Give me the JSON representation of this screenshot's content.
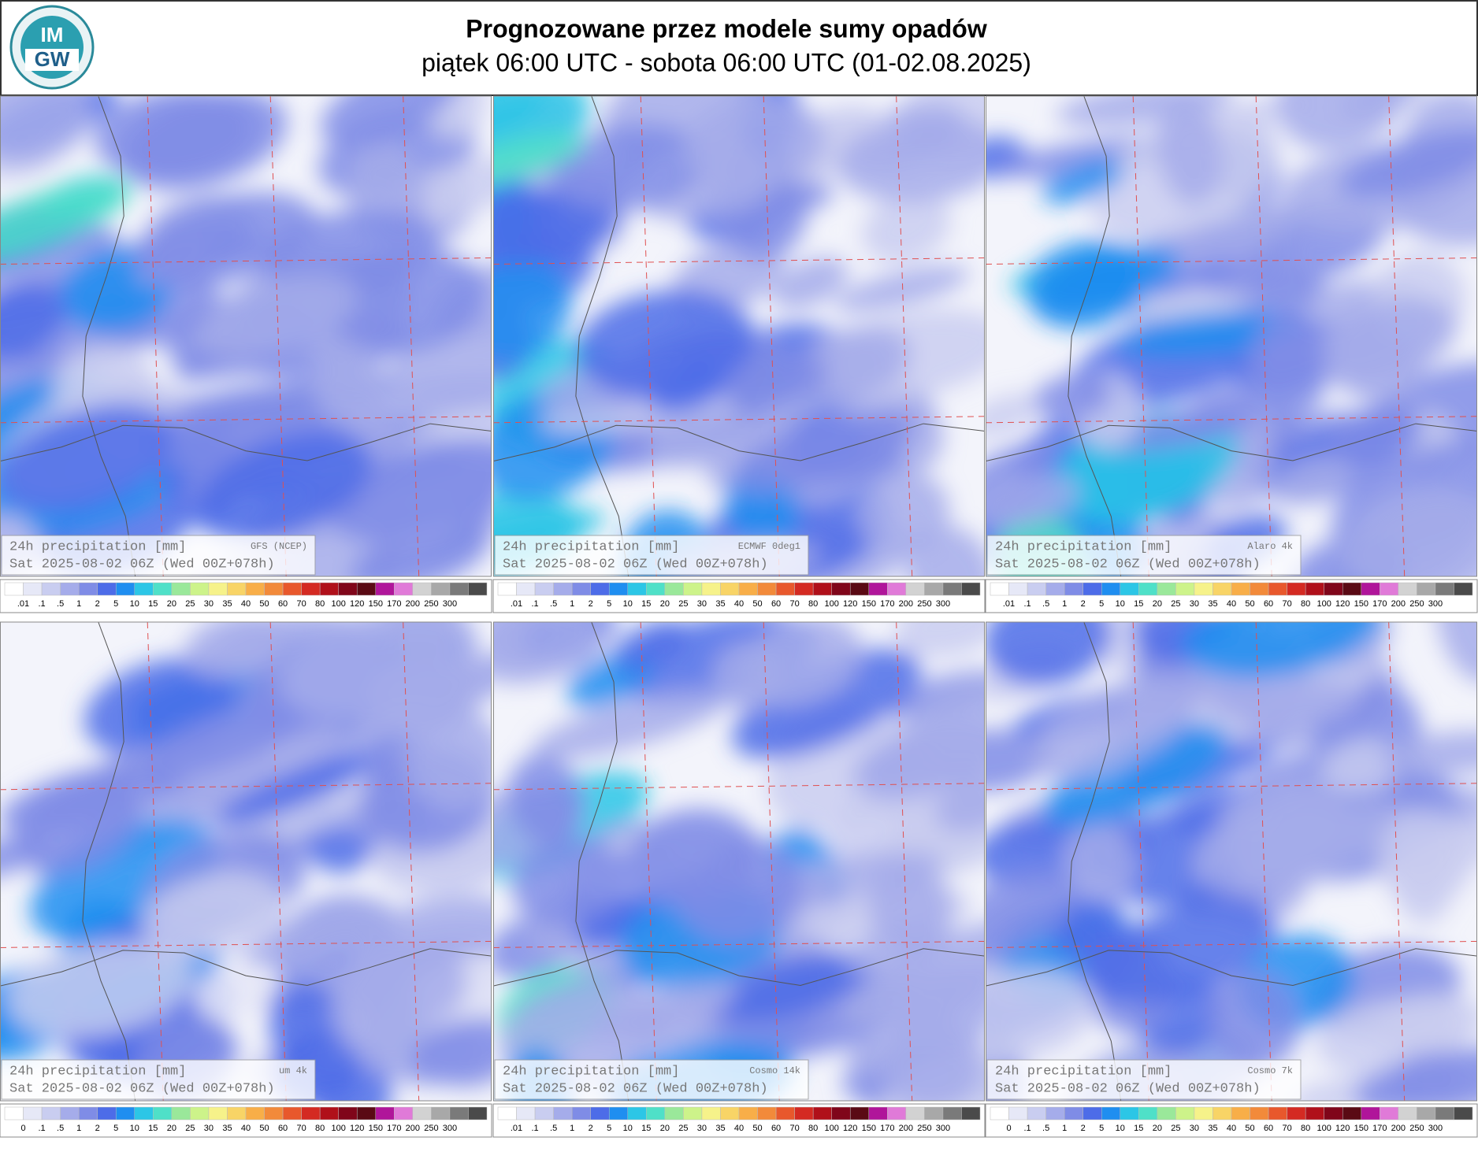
{
  "header": {
    "logo_lines": [
      "IM",
      "GW"
    ],
    "title": "Prognozowane przez modele sumy opadów",
    "subtitle": "piątek 06:00 UTC - sobota 06:00 UTC (01-02.08.2025)"
  },
  "scale_colors": [
    "#ffffff",
    "#e6e8f7",
    "#c9cdf0",
    "#a5acea",
    "#7f8ce6",
    "#4d6ce8",
    "#1f8ef0",
    "#2cc6e6",
    "#4fe0c8",
    "#9ae89a",
    "#cdf38a",
    "#f6f28a",
    "#f8d466",
    "#f8ae48",
    "#f28a3a",
    "#e8582c",
    "#d42a22",
    "#b0101a",
    "#80061a",
    "#5a0a14",
    "#b0159a",
    "#e07ad8",
    "#d2d2d2",
    "#a8a8a8",
    "#7a7a7a",
    "#4a4a4a"
  ],
  "panels": [
    {
      "caption": "24h precipitation  [mm]",
      "model": "GFS (NCEP)",
      "valid": "Sat 2025-08-02 06Z (Wed 00Z+078h)",
      "scale_labels": [
        ".01",
        ".1",
        ".5",
        "1",
        "2",
        "5",
        "10",
        "15",
        "20",
        "25",
        "30",
        "35",
        "40",
        "50",
        "60",
        "70",
        "80",
        "100",
        "120",
        "150",
        "170",
        "200",
        "250",
        "300"
      ]
    },
    {
      "caption": "24h precipitation  [mm]",
      "model": "ECMWF 0deg1",
      "valid": "Sat 2025-08-02 06Z (Wed 00Z+078h)",
      "scale_labels": [
        ".01",
        ".1",
        ".5",
        "1",
        "2",
        "5",
        "10",
        "15",
        "20",
        "25",
        "30",
        "35",
        "40",
        "50",
        "60",
        "70",
        "80",
        "100",
        "120",
        "150",
        "170",
        "200",
        "250",
        "300"
      ]
    },
    {
      "caption": "24h precipitation  [mm]",
      "model": "Alaro 4k",
      "valid": "Sat 2025-08-02 06Z (Wed 00Z+078h)",
      "scale_labels": [
        ".01",
        ".1",
        ".5",
        "1",
        "2",
        "5",
        "10",
        "15",
        "20",
        "25",
        "30",
        "35",
        "40",
        "50",
        "60",
        "70",
        "80",
        "100",
        "120",
        "150",
        "170",
        "200",
        "250",
        "300"
      ]
    },
    {
      "caption": "24h precipitation  [mm]",
      "model": "um 4k",
      "valid": "Sat 2025-08-02 06Z (Wed 00Z+078h)",
      "scale_labels": [
        "0",
        ".1",
        ".5",
        "1",
        "2",
        "5",
        "10",
        "15",
        "20",
        "25",
        "30",
        "35",
        "40",
        "50",
        "60",
        "70",
        "80",
        "100",
        "120",
        "150",
        "170",
        "200",
        "250",
        "300"
      ]
    },
    {
      "caption": "24h precipitation  [mm]",
      "model": "Cosmo 14k",
      "valid": "Sat 2025-08-02 06Z (Wed 00Z+078h)",
      "scale_labels": [
        ".01",
        ".1",
        ".5",
        "1",
        "2",
        "5",
        "10",
        "15",
        "20",
        "25",
        "30",
        "35",
        "40",
        "50",
        "60",
        "70",
        "80",
        "100",
        "120",
        "150",
        "170",
        "200",
        "250",
        "300"
      ]
    },
    {
      "caption": "24h precipitation  [mm]",
      "model": "Cosmo 7k",
      "valid": "Sat 2025-08-02 06Z (Wed 00Z+078h)",
      "scale_labels": [
        "0",
        ".1",
        ".5",
        "1",
        "2",
        "5",
        "10",
        "15",
        "20",
        "25",
        "30",
        "35",
        "40",
        "50",
        "60",
        "70",
        "80",
        "100",
        "120",
        "150",
        "170",
        "200",
        "250",
        "300"
      ]
    }
  ]
}
